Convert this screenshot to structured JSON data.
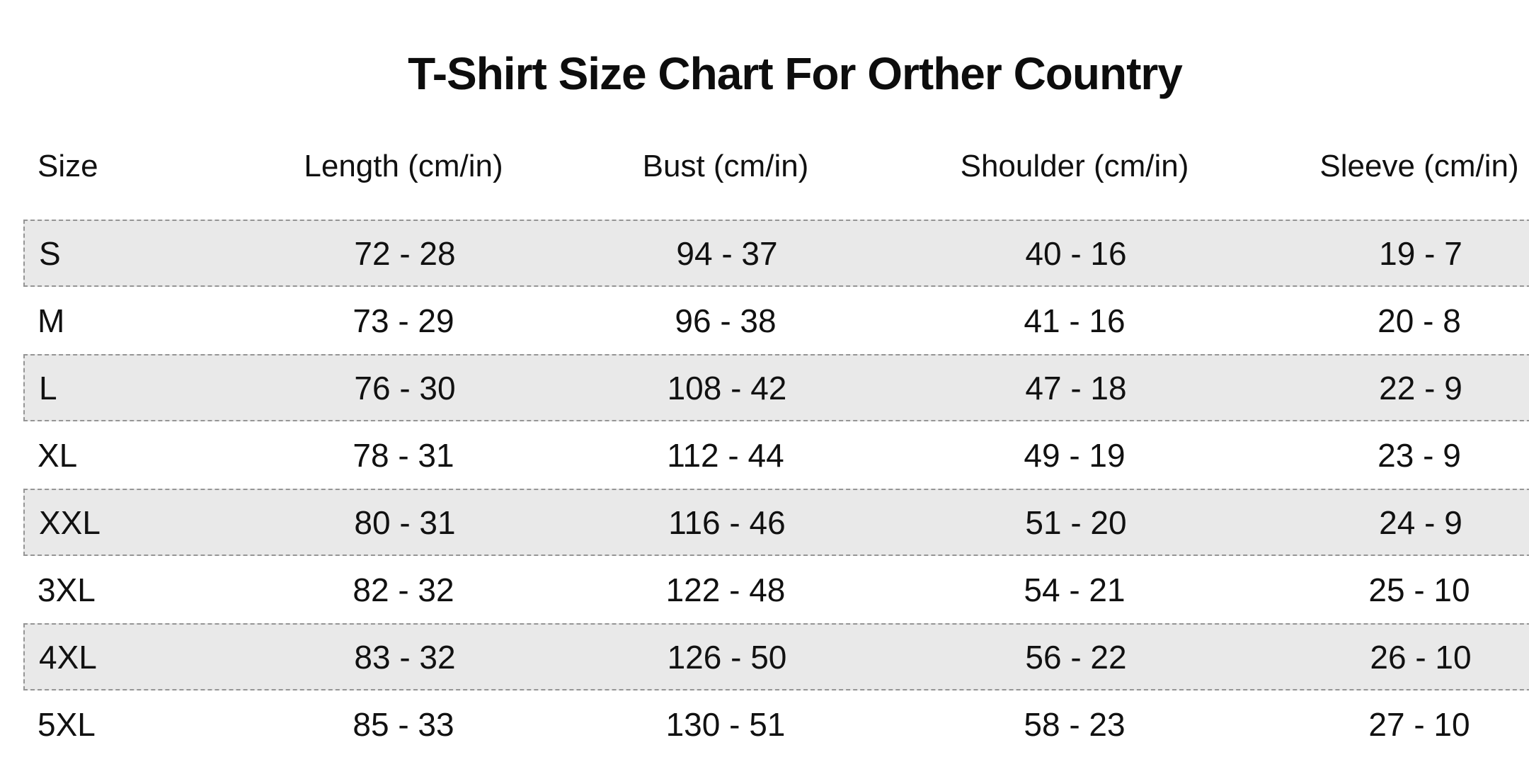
{
  "chart_data": {
    "type": "table",
    "title": "T-Shirt Size Chart For Orther Country",
    "columns": [
      "Size",
      "Length (cm/in)",
      "Bust (cm/in)",
      "Shoulder (cm/in)",
      "Sleeve (cm/in)"
    ],
    "rows": [
      {
        "size": "S",
        "length": "72 - 28",
        "bust": "94 - 37",
        "shoulder": "40 - 16",
        "sleeve": "19 - 7",
        "shaded": true
      },
      {
        "size": "M",
        "length": "73 - 29",
        "bust": "96 - 38",
        "shoulder": "41 - 16",
        "sleeve": "20 - 8",
        "shaded": false
      },
      {
        "size": "L",
        "length": "76 - 30",
        "bust": "108 - 42",
        "shoulder": "47 - 18",
        "sleeve": "22 - 9",
        "shaded": true
      },
      {
        "size": "XL",
        "length": "78 - 31",
        "bust": "112 - 44",
        "shoulder": "49 - 19",
        "sleeve": "23 - 9",
        "shaded": false
      },
      {
        "size": "XXL",
        "length": "80 - 31",
        "bust": "116 - 46",
        "shoulder": "51 - 20",
        "sleeve": "24 - 9",
        "shaded": true
      },
      {
        "size": "3XL",
        "length": "82 - 32",
        "bust": "122 - 48",
        "shoulder": "54 - 21",
        "sleeve": "25 - 10",
        "shaded": false
      },
      {
        "size": "4XL",
        "length": "83 - 32",
        "bust": "126 - 50",
        "shoulder": "56 - 22",
        "sleeve": "26 - 10",
        "shaded": true
      },
      {
        "size": "5XL",
        "length": "85 - 33",
        "bust": "130 - 51",
        "shoulder": "58 - 23",
        "sleeve": "27 - 10",
        "shaded": false
      }
    ],
    "layout": {
      "legend": "none",
      "grid": "off",
      "striping": "alternating rows shaded with dashed outline, table clipped at right edge"
    }
  },
  "colors": {
    "row_shade": "#e9e9e9",
    "dash_border": "#959595",
    "text": "#111111",
    "background": "#ffffff"
  }
}
